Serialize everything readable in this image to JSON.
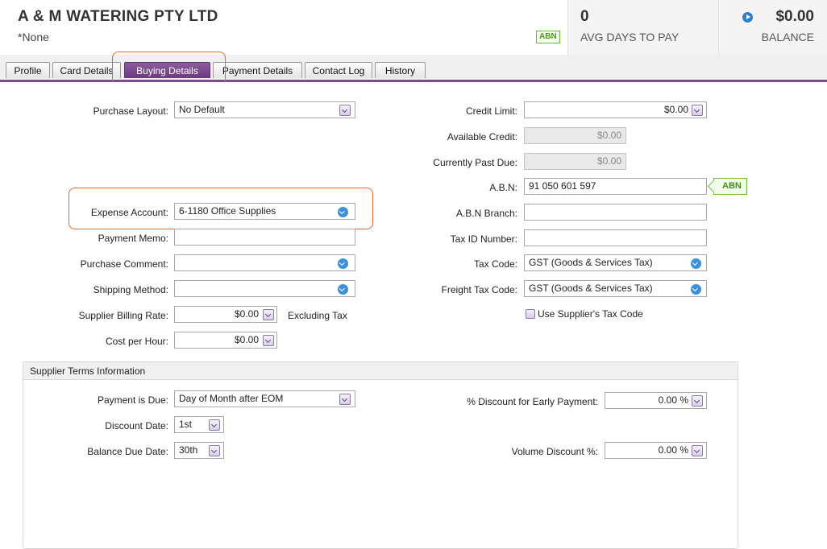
{
  "header": {
    "company_name": "A & M WATERING PTY LTD",
    "subtitle": "*None",
    "abn_badge": "ABN",
    "avg_days_value": "0",
    "avg_days_label": "AVG DAYS TO PAY",
    "balance_value": "$0.00",
    "balance_label": "BALANCE"
  },
  "tabs": [
    {
      "label": "Profile"
    },
    {
      "label": "Card Details"
    },
    {
      "label": "Buying Details",
      "active": true
    },
    {
      "label": "Payment Details"
    },
    {
      "label": "Contact Log"
    },
    {
      "label": "History"
    }
  ],
  "left": {
    "purchase_layout": {
      "label": "Purchase Layout:",
      "value": "No Default"
    },
    "expense_account": {
      "label": "Expense Account:",
      "value": "6-1180 Office Supplies"
    },
    "payment_memo": {
      "label": "Payment Memo:",
      "value": ""
    },
    "purchase_comment": {
      "label": "Purchase Comment:",
      "value": ""
    },
    "shipping_method": {
      "label": "Shipping Method:",
      "value": ""
    },
    "supplier_billing_rate": {
      "label": "Supplier Billing Rate:",
      "value": "$0.00",
      "suffix": "Excluding Tax"
    },
    "cost_per_hour": {
      "label": "Cost per Hour:",
      "value": "$0.00"
    }
  },
  "right": {
    "credit_limit": {
      "label": "Credit Limit:",
      "value": "$0.00"
    },
    "available_credit": {
      "label": "Available Credit:",
      "value": "$0.00"
    },
    "currently_past_due": {
      "label": "Currently Past Due:",
      "value": "$0.00"
    },
    "abn": {
      "label": "A.B.N:",
      "value": "91 050 601 597",
      "tag": "ABN"
    },
    "abn_branch": {
      "label": "A.B.N Branch:",
      "value": ""
    },
    "tax_id": {
      "label": "Tax ID Number:",
      "value": ""
    },
    "tax_code": {
      "label": "Tax Code:",
      "value": "GST (Goods & Services Tax)"
    },
    "freight_tax_code": {
      "label": "Freight Tax Code:",
      "value": "GST (Goods & Services Tax)"
    },
    "use_supplier_tax_code": {
      "label": "Use Supplier's Tax Code",
      "checked": false
    }
  },
  "terms": {
    "title": "Supplier Terms Information",
    "payment_due": {
      "label": "Payment is Due:",
      "value": "Day of Month after EOM"
    },
    "discount_date": {
      "label": "Discount Date:",
      "value": "1st"
    },
    "balance_due_date": {
      "label": "Balance Due Date:",
      "value": "30th"
    },
    "early_discount": {
      "label": "% Discount for Early Payment:",
      "value": "0.00 %"
    },
    "volume_discount": {
      "label": "Volume Discount %:",
      "value": "0.00 %"
    }
  },
  "colors": {
    "accent": "#7c4b8e",
    "highlight": "#e2662e",
    "abn_green": "#6cbf3b"
  }
}
